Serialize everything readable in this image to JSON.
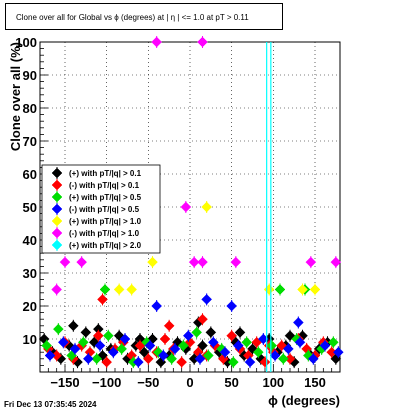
{
  "chart_data": {
    "type": "scatter",
    "title": "Clone  over all for Global vs ϕ (degrees) at |  η  | <= 1.0 at pT > 0.11",
    "xlabel": "ϕ (degrees)",
    "ylabel": "Clone  over all (%)",
    "xlim": [
      -180,
      180
    ],
    "ylim": [
      0,
      100
    ],
    "xticks": [
      -150,
      -100,
      -50,
      0,
      50,
      100,
      150
    ],
    "yticks": [
      10,
      20,
      30,
      40,
      50,
      60,
      70,
      80,
      90,
      100
    ],
    "grid": true,
    "legend_position": "center-left",
    "series": [
      {
        "name": "(+) with pT/|q| > 0.1",
        "color": "#000000",
        "x": [
          -175,
          -165,
          -155,
          -145,
          -135,
          -125,
          -115,
          -105,
          -95,
          -85,
          -75,
          -65,
          -55,
          -45,
          -35,
          -25,
          -15,
          -5,
          5,
          15,
          25,
          35,
          45,
          55,
          65,
          75,
          85,
          95,
          105,
          115,
          125,
          135,
          145,
          155,
          165,
          175,
          -140,
          -110,
          -60,
          10,
          60,
          120
        ],
        "y": [
          10,
          6,
          4,
          8,
          3,
          12,
          9,
          5,
          7,
          11,
          4,
          8,
          6,
          10,
          3,
          5,
          9,
          7,
          4,
          8,
          12,
          6,
          3,
          9,
          5,
          7,
          4,
          10,
          6,
          8,
          3,
          11,
          5,
          7,
          9,
          4,
          14,
          13,
          10,
          15,
          12,
          11
        ]
      },
      {
        "name": "(-) with pT/|q| > 0.1",
        "color": "#ff0000",
        "x": [
          -170,
          -160,
          -150,
          -140,
          -130,
          -120,
          -110,
          -100,
          -90,
          -80,
          -70,
          -60,
          -50,
          -40,
          -30,
          -20,
          -10,
          0,
          10,
          20,
          30,
          40,
          50,
          60,
          70,
          80,
          90,
          100,
          110,
          120,
          130,
          140,
          150,
          160,
          170,
          -105,
          -25,
          15,
          95
        ],
        "y": [
          7,
          5,
          9,
          4,
          8,
          6,
          11,
          3,
          7,
          9,
          5,
          8,
          4,
          6,
          10,
          7,
          3,
          9,
          6,
          5,
          8,
          4,
          11,
          7,
          5,
          9,
          3,
          6,
          8,
          4,
          10,
          7,
          5,
          9,
          6,
          22,
          14,
          16,
          8
        ]
      },
      {
        "name": "(+) with pT/|q| > 0.5",
        "color": "#00dd00",
        "x": [
          -172,
          -158,
          -142,
          -128,
          -112,
          -98,
          -82,
          -68,
          -52,
          -38,
          -22,
          -8,
          8,
          22,
          38,
          52,
          68,
          82,
          98,
          112,
          128,
          142,
          158,
          172,
          -102,
          108,
          138
        ],
        "y": [
          8,
          13,
          5,
          9,
          4,
          11,
          7,
          3,
          9,
          6,
          4,
          8,
          12,
          5,
          7,
          3,
          9,
          6,
          8,
          4,
          10,
          5,
          7,
          9,
          25,
          25,
          25
        ]
      },
      {
        "name": "(-) with pT/|q| > 0.5",
        "color": "#0000ff",
        "x": [
          -168,
          -152,
          -138,
          -122,
          -108,
          -92,
          -78,
          -62,
          -48,
          -32,
          -18,
          -2,
          12,
          28,
          42,
          58,
          72,
          88,
          102,
          118,
          132,
          148,
          162,
          178,
          -40,
          20,
          50,
          130
        ],
        "y": [
          5,
          9,
          7,
          4,
          8,
          6,
          10,
          3,
          8,
          5,
          7,
          11,
          4,
          9,
          6,
          8,
          3,
          10,
          5,
          7,
          9,
          4,
          8,
          6,
          20,
          22,
          20,
          15
        ]
      },
      {
        "name": "(+) with pT/|q| > 1.0",
        "color": "#ffff00",
        "x": [
          -85,
          -70,
          -45,
          20,
          95,
          135,
          150
        ],
        "y": [
          25,
          25,
          33.3,
          50,
          25,
          25,
          25
        ]
      },
      {
        "name": "(-) with pT/|q| > 1.0",
        "color": "#ff00ff",
        "x": [
          -160,
          -150,
          -130,
          -40,
          -5,
          5,
          15,
          15,
          55,
          145,
          175
        ],
        "y": [
          25,
          33.3,
          33.3,
          100,
          50,
          33.3,
          100,
          33.3,
          33.3,
          33.3,
          33.3
        ]
      },
      {
        "name": "(+) with pT/|q| > 2.0",
        "color": "#00ffff",
        "x": [
          92,
          97
        ],
        "y": [
          0,
          0
        ]
      }
    ]
  },
  "footer": {
    "timestamp": "Fri Dec 13 07:35:45 2024"
  }
}
